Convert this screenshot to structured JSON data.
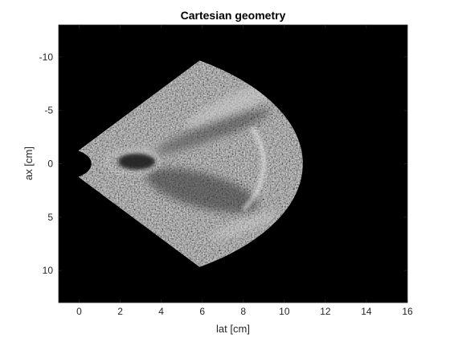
{
  "chart_data": {
    "type": "heatmap",
    "title": "Cartesian geometry",
    "xlabel": "lat [cm]",
    "ylabel": "ax [cm]",
    "xlim": [
      -1,
      16
    ],
    "ylim": [
      -13,
      13
    ],
    "y_reversed": true,
    "xticks": [
      0,
      2,
      4,
      6,
      8,
      10,
      12,
      14,
      16
    ],
    "yticks": [
      -10,
      -5,
      0,
      5,
      10
    ],
    "xtick_labels": [
      "0",
      "2",
      "4",
      "6",
      "8",
      "10",
      "12",
      "14",
      "16"
    ],
    "ytick_labels": [
      "-10",
      "-5",
      "0",
      "5",
      "10"
    ],
    "colormap": "gray",
    "background_color": "#000000",
    "image_content": "ultrasound-sector-scan",
    "sector": {
      "apex": [
        -0.9,
        0
      ],
      "inner_radius": 1.5,
      "outer_radius": 11.8,
      "half_angle_deg": 55
    }
  }
}
